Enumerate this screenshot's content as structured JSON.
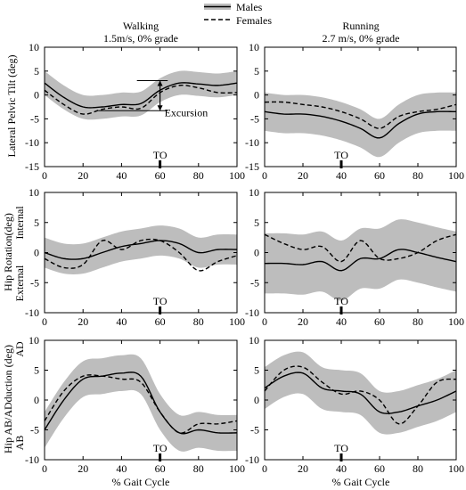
{
  "legend": {
    "males_label": "Males",
    "females_label": "Females"
  },
  "columns": [
    {
      "title": "Walking",
      "subtitle": "1.5m/s, 0% grade"
    },
    {
      "title": "Running",
      "subtitle": "2.7 m/s, 0% grade"
    }
  ],
  "row_labels": [
    {
      "ylabel": "Lateral Pelvic Tilt (deg)"
    },
    {
      "ylabel": "Hip Rotation(deg)",
      "top_note": "Internal",
      "bottom_note": "External"
    },
    {
      "ylabel": "Hip AB/ADduction (deg)",
      "top_note": "AD",
      "bottom_note": "AB"
    }
  ],
  "xlabel": "% Gait Cycle",
  "to_label": "TO",
  "excursion_label": "Excursion",
  "colors": {
    "band": "#bdbdbd",
    "males_line": "#000000",
    "females_line": "#000000"
  },
  "chart_data": [
    {
      "id": "walk-tilt",
      "type": "line",
      "row": 0,
      "col": 0,
      "xlim": [
        0,
        100
      ],
      "ylim": [
        -15,
        10
      ],
      "xticks": [
        0,
        20,
        40,
        60,
        80,
        100
      ],
      "yticks": [
        -15,
        -10,
        -5,
        0,
        5,
        10
      ],
      "to": 60,
      "excursion": {
        "x": 60,
        "y_top": 3,
        "y_bottom": -3.3
      },
      "x": [
        0,
        10,
        20,
        30,
        40,
        50,
        60,
        70,
        80,
        90,
        100
      ],
      "series": [
        {
          "name": "Males",
          "style": "solid",
          "values": [
            2.5,
            -0.5,
            -2.5,
            -2.5,
            -2.0,
            -1.8,
            1.0,
            2.5,
            2.3,
            2.0,
            2.5
          ],
          "sd": [
            2.5,
            2.5,
            2.5,
            2.5,
            2.5,
            2.5,
            2.5,
            2.5,
            2.5,
            2.5,
            2.5
          ]
        },
        {
          "name": "Females",
          "style": "dashed",
          "values": [
            1.0,
            -2.0,
            -4.0,
            -3.0,
            -2.5,
            -2.8,
            0.5,
            2.0,
            1.5,
            0.5,
            0.5
          ]
        }
      ]
    },
    {
      "id": "run-tilt",
      "type": "line",
      "row": 0,
      "col": 1,
      "xlim": [
        0,
        100
      ],
      "ylim": [
        -15,
        10
      ],
      "xticks": [
        0,
        20,
        40,
        60,
        80,
        100
      ],
      "yticks": [
        -15,
        -10,
        -5,
        0,
        5,
        10
      ],
      "to": 40,
      "x": [
        0,
        10,
        20,
        30,
        40,
        50,
        60,
        70,
        80,
        90,
        100
      ],
      "series": [
        {
          "name": "Males",
          "style": "solid",
          "values": [
            -3.5,
            -4.0,
            -4.0,
            -4.5,
            -5.5,
            -7.0,
            -9.0,
            -6.0,
            -4.0,
            -3.5,
            -3.5
          ],
          "sd": [
            4,
            4,
            4,
            4,
            4,
            4,
            4,
            4,
            4,
            4,
            4
          ]
        },
        {
          "name": "Females",
          "style": "dashed",
          "values": [
            -1.5,
            -1.5,
            -2.0,
            -2.5,
            -3.5,
            -5.0,
            -7.0,
            -4.5,
            -3.5,
            -3.0,
            -2.0
          ]
        }
      ]
    },
    {
      "id": "walk-rot",
      "type": "line",
      "row": 1,
      "col": 0,
      "xlim": [
        0,
        100
      ],
      "ylim": [
        -10,
        10
      ],
      "xticks": [
        0,
        20,
        40,
        60,
        80,
        100
      ],
      "yticks": [
        -10,
        -5,
        0,
        5,
        10
      ],
      "to": 60,
      "x": [
        0,
        10,
        20,
        30,
        40,
        50,
        60,
        70,
        80,
        90,
        100
      ],
      "series": [
        {
          "name": "Males",
          "style": "solid",
          "values": [
            0.0,
            -1.0,
            -1.0,
            0.0,
            1.0,
            1.5,
            2.0,
            1.5,
            0.0,
            0.5,
            0.5
          ],
          "sd": [
            2.5,
            2.5,
            2.5,
            2.5,
            2.5,
            2.5,
            2.5,
            2.5,
            2.5,
            2.5,
            2.5
          ]
        },
        {
          "name": "Females",
          "style": "dashed",
          "values": [
            -1.0,
            -2.5,
            -2.0,
            2.0,
            0.5,
            2.0,
            2.0,
            0.0,
            -3.0,
            -1.5,
            -0.5
          ]
        }
      ]
    },
    {
      "id": "run-rot",
      "type": "line",
      "row": 1,
      "col": 1,
      "xlim": [
        0,
        100
      ],
      "ylim": [
        -10,
        10
      ],
      "xticks": [
        0,
        20,
        40,
        60,
        80,
        100
      ],
      "yticks": [
        -10,
        -5,
        0,
        5,
        10
      ],
      "to": 40,
      "x": [
        0,
        10,
        20,
        30,
        40,
        50,
        60,
        70,
        80,
        90,
        100
      ],
      "series": [
        {
          "name": "Males",
          "style": "solid",
          "values": [
            -1.8,
            -1.8,
            -2.0,
            -1.5,
            -3.0,
            -1.0,
            -1.0,
            0.5,
            0.0,
            -0.8,
            -1.5
          ],
          "sd": [
            5,
            5,
            5,
            5,
            5,
            5,
            5,
            5,
            5,
            5,
            5
          ]
        },
        {
          "name": "Females",
          "style": "dashed",
          "values": [
            3.0,
            1.5,
            0.5,
            1.0,
            -1.5,
            2.0,
            -1.0,
            -1.0,
            0.0,
            2.0,
            3.0
          ]
        }
      ]
    },
    {
      "id": "walk-abd",
      "type": "line",
      "row": 2,
      "col": 0,
      "xlim": [
        0,
        100
      ],
      "ylim": [
        -10,
        10
      ],
      "xticks": [
        0,
        20,
        40,
        60,
        80,
        100
      ],
      "yticks": [
        -10,
        -5,
        0,
        5,
        10
      ],
      "to": 60,
      "x": [
        0,
        10,
        20,
        30,
        40,
        50,
        60,
        70,
        80,
        90,
        100
      ],
      "series": [
        {
          "name": "Males",
          "style": "solid",
          "values": [
            -5.0,
            0.0,
            3.5,
            4.0,
            4.5,
            4.0,
            -2.0,
            -5.5,
            -5.0,
            -5.5,
            -5.5
          ],
          "sd": [
            3,
            3,
            3,
            3,
            3,
            3,
            3,
            3,
            3,
            3,
            3
          ]
        },
        {
          "name": "Females",
          "style": "dashed",
          "values": [
            -3.5,
            1.5,
            4.0,
            4.0,
            3.5,
            3.0,
            -2.0,
            -5.5,
            -4.0,
            -4.0,
            -3.5
          ]
        }
      ]
    },
    {
      "id": "run-abd",
      "type": "line",
      "row": 2,
      "col": 1,
      "xlim": [
        0,
        100
      ],
      "ylim": [
        -10,
        10
      ],
      "xticks": [
        0,
        20,
        40,
        60,
        80,
        100
      ],
      "yticks": [
        -10,
        -5,
        0,
        5,
        10
      ],
      "to": 40,
      "x": [
        0,
        10,
        20,
        30,
        40,
        50,
        60,
        70,
        80,
        90,
        100
      ],
      "series": [
        {
          "name": "Males",
          "style": "solid",
          "values": [
            2.0,
            4.0,
            4.5,
            2.0,
            1.5,
            1.0,
            -2.0,
            -2.0,
            -1.0,
            0.0,
            1.5
          ],
          "sd": [
            3.5,
            3.5,
            3.5,
            3.5,
            3.5,
            3.5,
            3.5,
            3.5,
            3.5,
            3.5,
            3.5
          ]
        },
        {
          "name": "Females",
          "style": "dashed",
          "values": [
            1.5,
            5.0,
            5.5,
            3.0,
            1.0,
            1.5,
            0.0,
            -4.0,
            -1.0,
            3.0,
            3.5
          ]
        }
      ]
    }
  ]
}
